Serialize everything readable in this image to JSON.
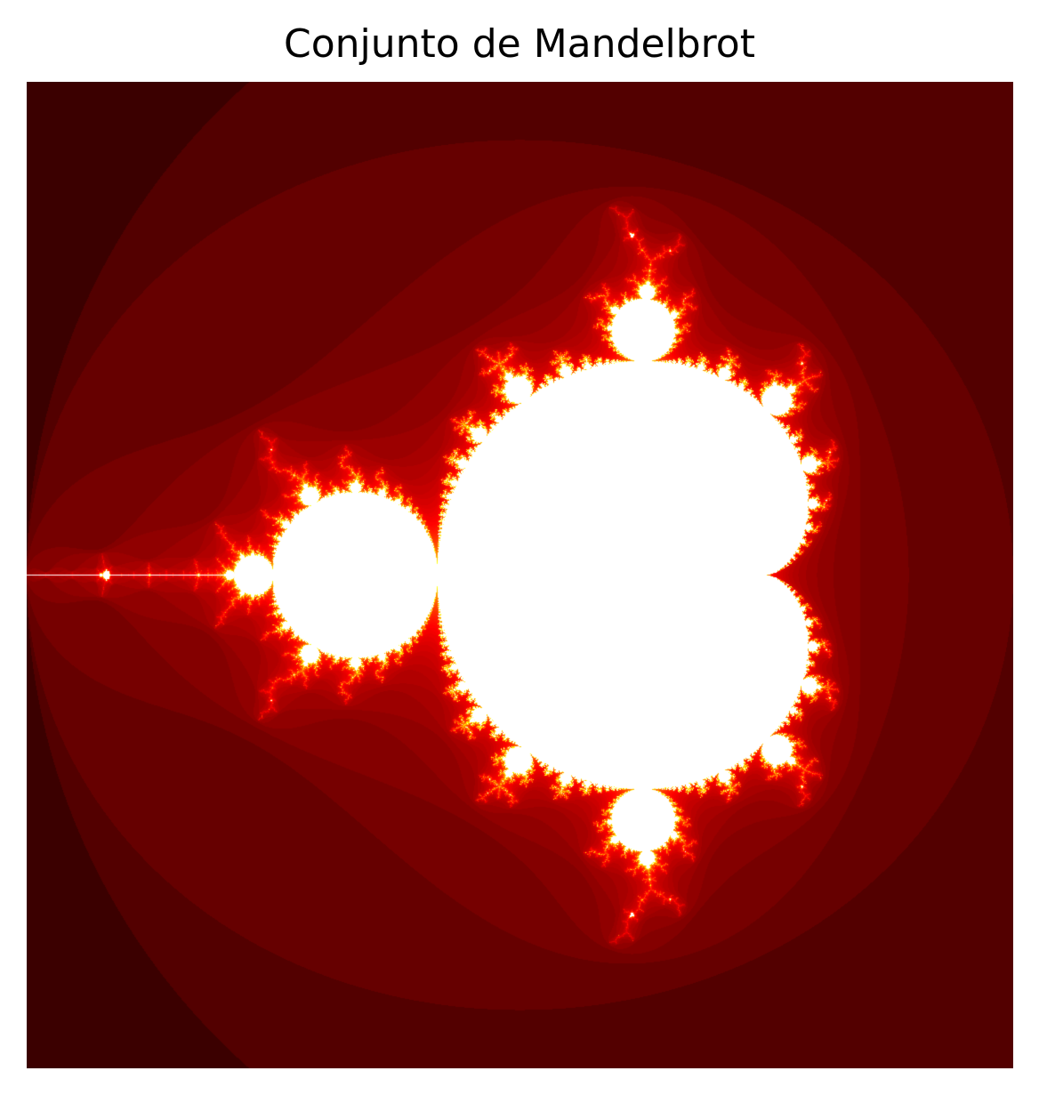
{
  "chart_data": {
    "type": "heatmap",
    "title": "Conjunto de Mandelbrot",
    "xlabel": "",
    "ylabel": "",
    "x_range": [
      -2.0,
      1.0
    ],
    "y_range": [
      -1.5,
      1.5
    ],
    "max_iterations": 256,
    "colormap": "hot",
    "colormap_stops": [
      "#0b0000",
      "#e60000",
      "#ffd700",
      "#ffffff"
    ],
    "set_color": "#ffffff",
    "axes_visible": false,
    "grid": false,
    "legend": "none"
  }
}
